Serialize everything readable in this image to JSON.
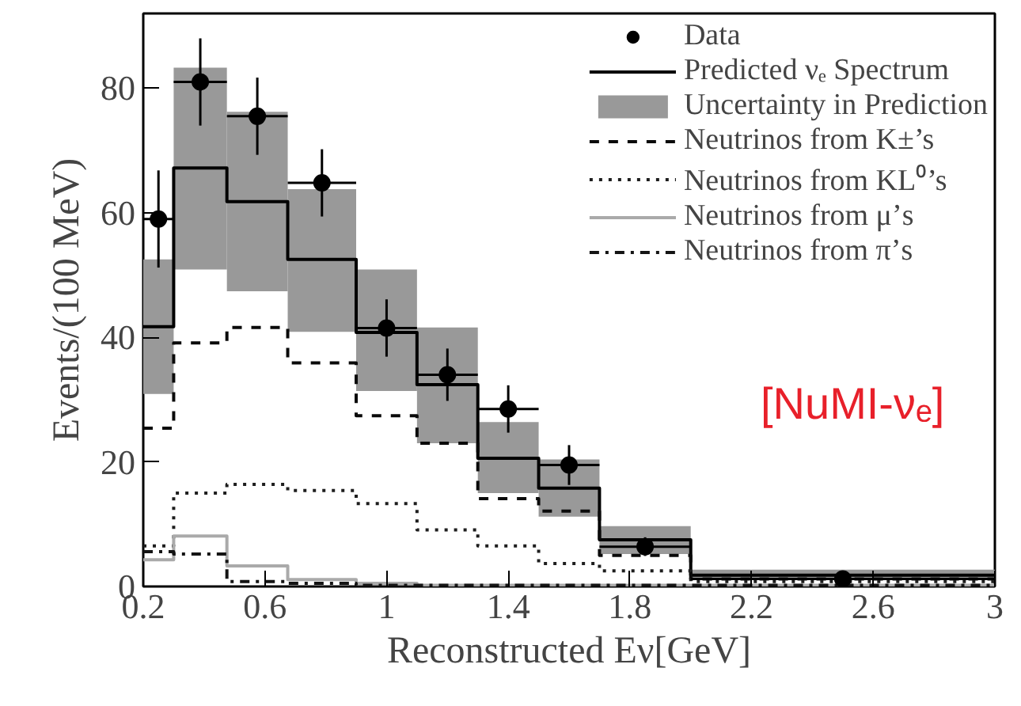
{
  "chart_data": {
    "type": "histogram",
    "xlabel": "Reconstructed Eν[GeV]",
    "ylabel": "Events/(100 MeV)",
    "bins": [
      0.2,
      0.3,
      0.475,
      0.675,
      0.9,
      1.1,
      1.3,
      1.5,
      1.7,
      2.0,
      3
    ],
    "series": [
      {
        "name": "Uncertainty in Prediction",
        "color": "#999999",
        "base": [
          30.9,
          50.9,
          47.4,
          40.9,
          31.4,
          23.0,
          15.0,
          11.2,
          5.2,
          1.2
        ],
        "values": [
          21.6,
          32.4,
          28.8,
          22.9,
          19.5,
          18.6,
          11.4,
          9.2,
          4.5,
          1.5
        ]
      },
      {
        "name": "Predicted νₑ Spectrum",
        "color": "#000000",
        "line_style": "solid",
        "values": [
          41.7,
          67.2,
          61.8,
          52.5,
          40.8,
          32.4,
          20.6,
          15.8,
          7.5,
          1.8
        ]
      },
      {
        "name": "Neutrinos from K±’s",
        "color": "#0a0a0a",
        "line_style": "dashed",
        "values": [
          25.4,
          39.1,
          41.6,
          35.9,
          27.4,
          23.0,
          14.1,
          12.1,
          5.0,
          1.2
        ]
      },
      {
        "name": "Neutrinos from KL⁰’s",
        "color": "#1e1e1e",
        "line_style": "dotted",
        "values": [
          6.5,
          15.0,
          16.4,
          15.4,
          13.3,
          9.1,
          6.5,
          3.7,
          2.5,
          0.8
        ]
      },
      {
        "name": "Neutrinos from μ’s",
        "color": "#aaaaaa",
        "line_style": "solid",
        "values": [
          4.3,
          8.1,
          3.3,
          1.1,
          0.5,
          0.2,
          0.2,
          0.2,
          0.2,
          0.2
        ]
      },
      {
        "name": "Neutrinos from π’s",
        "color": "#141414",
        "line_style": "dashdot",
        "values": [
          5.6,
          5.2,
          0.8,
          0.5,
          0.2,
          0.2,
          0.2,
          0.2,
          0.2,
          0.2
        ]
      },
      {
        "name": "Data",
        "type": "scatter",
        "color": "#000000",
        "marker": "circle",
        "x": [
          0.25,
          0.3875,
          0.575,
          0.7875,
          1.0,
          1.2,
          1.4,
          1.6,
          1.85,
          2.5
        ],
        "values": [
          59.0,
          81.0,
          75.5,
          64.8,
          41.5,
          34.0,
          28.5,
          19.5,
          6.4,
          1.2
        ],
        "errors": [
          7.8,
          7.0,
          6.2,
          5.4,
          4.6,
          4.2,
          3.8,
          3.2,
          1.5,
          0.5
        ],
        "xerrors": [
          0.05,
          0.0875,
          0.1,
          0.1125,
          0.1,
          0.1,
          0.1,
          0.1,
          0.15,
          0.5
        ]
      }
    ],
    "xlim": [
      0.2,
      3
    ],
    "ylim": [
      0,
      92
    ],
    "xticks": [
      0.2,
      0.6,
      1,
      1.4,
      1.8,
      2.2,
      2.6,
      3
    ],
    "yticks": [
      0,
      20,
      40,
      60,
      80
    ],
    "annotations": [
      "[NuMI-νₑ]"
    ],
    "legend": "top right",
    "grid": false
  }
}
